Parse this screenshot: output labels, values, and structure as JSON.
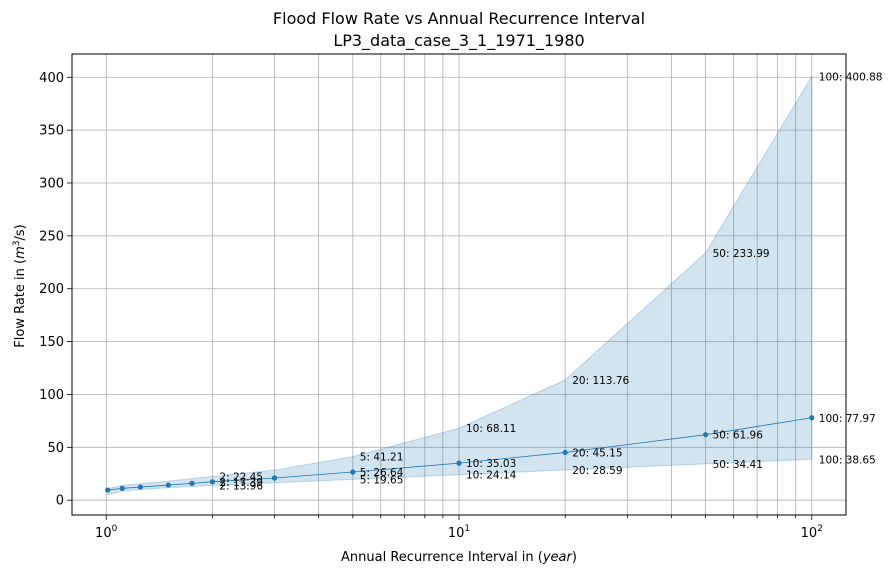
{
  "colors": {
    "line": "#1f77b4",
    "band": "#1f77b4",
    "grid": "#b0b0b0",
    "background": "#ffffff"
  },
  "chart_data": {
    "type": "line",
    "title": "Flood Flow Rate vs Annual Recurrence Interval",
    "subtitle": "LP3_data_case_3_1_1971_1980",
    "xlabel_text": "Annual Recurrence Interval in ",
    "xlabel_unit": "year",
    "ylabel_text": "Flow Rate in ",
    "ylabel_unit": "m",
    "ylabel_exp": "3",
    "ylabel_tail": "/s)",
    "xscale": "log",
    "xlim": [
      0.8,
      125
    ],
    "ylim": [
      -14,
      422
    ],
    "grid": true,
    "x_ticks": [
      1,
      10,
      100
    ],
    "x_tick_labels": [
      {
        "base": "10",
        "exp": "0"
      },
      {
        "base": "10",
        "exp": "1"
      },
      {
        "base": "10",
        "exp": "2"
      }
    ],
    "y_ticks": [
      0,
      50,
      100,
      150,
      200,
      250,
      300,
      350,
      400
    ],
    "y_tick_labels": [
      "0",
      "50",
      "100",
      "150",
      "200",
      "250",
      "300",
      "350",
      "400"
    ],
    "series": [
      {
        "x": [
          1.01,
          1.11,
          1.25,
          1.5,
          1.75,
          2,
          3,
          5,
          10,
          20,
          50,
          100
        ],
        "y": [
          9.6,
          11.2,
          12.4,
          14.3,
          15.9,
          17.39,
          21.0,
          26.64,
          35.03,
          45.15,
          61.96,
          77.97
        ]
      }
    ],
    "band": {
      "x": [
        1.01,
        1.11,
        1.25,
        1.5,
        1.75,
        2,
        3,
        5,
        10,
        20,
        50,
        100
      ],
      "lower": [
        5.0,
        8.6,
        10.1,
        11.8,
        13.0,
        13.96,
        16.5,
        19.65,
        24.14,
        28.59,
        34.41,
        38.65
      ],
      "upper": [
        11.0,
        14.0,
        15.5,
        18.0,
        20.4,
        22.45,
        28.5,
        41.21,
        68.11,
        113.76,
        233.99,
        400.88
      ]
    },
    "annotations": [
      {
        "text": "2: 22.45",
        "x": 2,
        "y": 22.45
      },
      {
        "text": "2: 17.39",
        "x": 2,
        "y": 17.39
      },
      {
        "text": "2: 13.96",
        "x": 2,
        "y": 13.96
      },
      {
        "text": "5: 41.21",
        "x": 5,
        "y": 41.21
      },
      {
        "text": "5: 26.64",
        "x": 5,
        "y": 26.64
      },
      {
        "text": "5: 19.65",
        "x": 5,
        "y": 19.65
      },
      {
        "text": "10: 68.11",
        "x": 10,
        "y": 68.11
      },
      {
        "text": "10: 35.03",
        "x": 10,
        "y": 35.03
      },
      {
        "text": "10: 24.14",
        "x": 10,
        "y": 24.14
      },
      {
        "text": "20: 113.76",
        "x": 20,
        "y": 113.76
      },
      {
        "text": "20: 45.15",
        "x": 20,
        "y": 45.15
      },
      {
        "text": "20: 28.59",
        "x": 20,
        "y": 28.59
      },
      {
        "text": "50: 233.99",
        "x": 50,
        "y": 233.99
      },
      {
        "text": "50: 61.96",
        "x": 50,
        "y": 61.96
      },
      {
        "text": "50: 34.41",
        "x": 50,
        "y": 34.41
      },
      {
        "text": "100: 400.88",
        "x": 100,
        "y": 400.88
      },
      {
        "text": "100: 77.97",
        "x": 100,
        "y": 77.97
      },
      {
        "text": "100: 38.65",
        "x": 100,
        "y": 38.65
      }
    ]
  }
}
